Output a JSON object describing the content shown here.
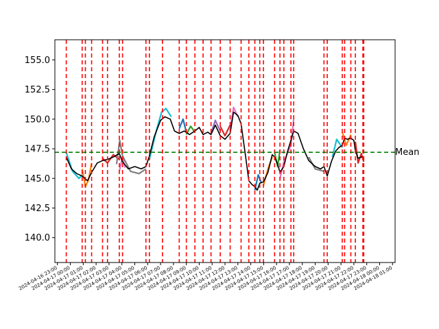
{
  "chart_data": {
    "type": "line",
    "title": "",
    "xlabel": "",
    "ylabel": "",
    "ylim": [
      137.9,
      156.7
    ],
    "xlim": [
      "2024-04-16 22:48",
      "2024-04-18 01:12"
    ],
    "grid": false,
    "yticks": [
      140.0,
      142.5,
      145.0,
      147.5,
      150.0,
      152.5,
      155.0
    ],
    "ytick_labels": [
      "140.0",
      "142.5",
      "145.0",
      "147.5",
      "150.0",
      "152.5",
      "155.0"
    ],
    "xticks": [
      "2024-04-16 23:00",
      "2024-04-17 00:00",
      "2024-04-17 01:00",
      "2024-04-17 02:00",
      "2024-04-17 03:00",
      "2024-04-17 04:00",
      "2024-04-17 05:00",
      "2024-04-17 06:00",
      "2024-04-17 07:00",
      "2024-04-17 08:00",
      "2024-04-17 09:00",
      "2024-04-17 10:00",
      "2024-04-17 11:00",
      "2024-04-17 12:00",
      "2024-04-17 13:00",
      "2024-04-17 14:00",
      "2024-04-17 15:00",
      "2024-04-17 16:00",
      "2024-04-17 17:00",
      "2024-04-17 18:00",
      "2024-04-17 19:00",
      "2024-04-17 20:00",
      "2024-04-17 21:00",
      "2024-04-17 22:00",
      "2024-04-17 23:00",
      "2024-04-18 00:00",
      "2024-04-18 01:00"
    ],
    "xtick_labels": [
      "2024-04-16 23:00",
      "2024-04-17 00:00",
      "2024-04-17 01:00",
      "2024-04-17 02:00",
      "2024-04-17 03:00",
      "2024-04-17 04:00",
      "2024-04-17 05:00",
      "2024-04-17 06:00",
      "2024-04-17 07:00",
      "2024-04-17 08:00",
      "2024-04-17 09:00",
      "2024-04-17 10:00",
      "2024-04-17 11:00",
      "2024-04-17 12:00",
      "2024-04-17 13:00",
      "2024-04-17 14:00",
      "2024-04-17 15:00",
      "2024-04-17 16:00",
      "2024-04-17 17:00",
      "2024-04-17 18:00",
      "2024-04-17 19:00",
      "2024-04-17 20:00",
      "2024-04-17 21:00",
      "2024-04-17 22:00",
      "2024-04-17 23:00",
      "2024-04-18 00:00",
      "2024-04-18 01:00"
    ],
    "mean": {
      "value": 147.2,
      "label": "Mean",
      "color": "#008000"
    },
    "vline_color": "#ff0000",
    "vlines": [
      "2024-04-16 23:41",
      "2024-04-17 00:55",
      "2024-04-17 01:10",
      "2024-04-17 01:39",
      "2024-04-17 02:30",
      "2024-04-17 02:53",
      "2024-04-17 03:48",
      "2024-04-17 04:03",
      "2024-04-17 05:52",
      "2024-04-17 06:08",
      "2024-04-17 07:09",
      "2024-04-17 08:27",
      "2024-04-17 09:00",
      "2024-04-17 09:40",
      "2024-04-17 10:18",
      "2024-04-17 10:55",
      "2024-04-17 11:38",
      "2024-04-17 12:24",
      "2024-04-17 13:15",
      "2024-04-17 13:51",
      "2024-04-17 14:19",
      "2024-04-17 14:42",
      "2024-04-17 14:59",
      "2024-04-17 15:51",
      "2024-04-17 16:16",
      "2024-04-17 16:34",
      "2024-04-17 17:07",
      "2024-04-17 17:20",
      "2024-04-17 19:41",
      "2024-04-17 19:56",
      "2024-04-17 21:06",
      "2024-04-17 21:17",
      "2024-04-17 21:46",
      "2024-04-17 22:07",
      "2024-04-17 22:42",
      "2024-04-17 22:46"
    ],
    "series": [
      {
        "color": "#000000",
        "points": [
          [
            "2024-04-16 23:41",
            146.8
          ],
          [
            "2024-04-17 00:05",
            145.8
          ],
          [
            "2024-04-17 00:30",
            145.4
          ],
          [
            "2024-04-17 00:55",
            145.2
          ],
          [
            "2024-04-17 01:20",
            144.8
          ],
          [
            "2024-04-17 01:39",
            145.5
          ],
          [
            "2024-04-17 02:05",
            146.3
          ],
          [
            "2024-04-17 02:30",
            146.5
          ],
          [
            "2024-04-17 02:53",
            146.6
          ],
          [
            "2024-04-17 03:20",
            146.8
          ],
          [
            "2024-04-17 03:48",
            147.1
          ],
          [
            "2024-04-17 04:03",
            146.4
          ],
          [
            "2024-04-17 04:30",
            145.8
          ],
          [
            "2024-04-17 05:00",
            146.0
          ],
          [
            "2024-04-17 05:30",
            145.8
          ],
          [
            "2024-04-17 05:52",
            146.0
          ],
          [
            "2024-04-17 06:08",
            146.9
          ],
          [
            "2024-04-17 06:30",
            148.5
          ],
          [
            "2024-04-17 07:00",
            149.9
          ],
          [
            "2024-04-17 07:20",
            150.2
          ],
          [
            "2024-04-17 07:45",
            150.0
          ],
          [
            "2024-04-17 08:05",
            149.0
          ],
          [
            "2024-04-17 08:27",
            148.8
          ],
          [
            "2024-04-17 08:50",
            149.0
          ],
          [
            "2024-04-17 09:15",
            148.7
          ],
          [
            "2024-04-17 09:40",
            149.0
          ],
          [
            "2024-04-17 10:00",
            149.3
          ],
          [
            "2024-04-17 10:18",
            148.7
          ],
          [
            "2024-04-17 10:40",
            148.9
          ],
          [
            "2024-04-17 10:55",
            148.7
          ],
          [
            "2024-04-17 11:15",
            149.5
          ],
          [
            "2024-04-17 11:38",
            148.6
          ],
          [
            "2024-04-17 12:00",
            148.3
          ],
          [
            "2024-04-17 12:24",
            148.8
          ],
          [
            "2024-04-17 12:40",
            150.6
          ],
          [
            "2024-04-17 13:00",
            150.3
          ],
          [
            "2024-04-17 13:15",
            149.6
          ],
          [
            "2024-04-17 13:35",
            147.0
          ],
          [
            "2024-04-17 13:51",
            144.8
          ],
          [
            "2024-04-17 14:05",
            144.5
          ],
          [
            "2024-04-17 14:19",
            144.3
          ],
          [
            "2024-04-17 14:30",
            144.0
          ],
          [
            "2024-04-17 14:42",
            144.6
          ],
          [
            "2024-04-17 14:59",
            144.7
          ],
          [
            "2024-04-17 15:20",
            145.5
          ],
          [
            "2024-04-17 15:40",
            147.0
          ],
          [
            "2024-04-17 15:51",
            146.8
          ],
          [
            "2024-04-17 16:05",
            146.2
          ],
          [
            "2024-04-17 16:16",
            145.5
          ],
          [
            "2024-04-17 16:34",
            146.0
          ],
          [
            "2024-04-17 16:50",
            147.2
          ],
          [
            "2024-04-17 17:07",
            148.2
          ],
          [
            "2024-04-17 17:20",
            149.0
          ],
          [
            "2024-04-17 17:40",
            148.8
          ],
          [
            "2024-04-17 18:05",
            147.5
          ],
          [
            "2024-04-17 18:30",
            146.5
          ],
          [
            "2024-04-17 19:00",
            146.0
          ],
          [
            "2024-04-17 19:25",
            145.8
          ],
          [
            "2024-04-17 19:41",
            146.0
          ],
          [
            "2024-04-17 19:56",
            145.2
          ],
          [
            "2024-04-17 20:15",
            146.4
          ],
          [
            "2024-04-17 20:35",
            147.3
          ],
          [
            "2024-04-17 20:50",
            147.6
          ],
          [
            "2024-04-17 21:06",
            147.8
          ],
          [
            "2024-04-17 21:17",
            148.4
          ],
          [
            "2024-04-17 21:30",
            148.3
          ],
          [
            "2024-04-17 21:46",
            148.4
          ],
          [
            "2024-04-17 22:00",
            148.2
          ],
          [
            "2024-04-17 22:07",
            147.3
          ],
          [
            "2024-04-17 22:20",
            146.7
          ],
          [
            "2024-04-17 22:35",
            146.8
          ],
          [
            "2024-04-17 22:46",
            146.8
          ]
        ]
      },
      {
        "color": "#17becf",
        "points": [
          [
            "2024-04-16 23:41",
            147.2
          ],
          [
            "2024-04-17 00:10",
            145.6
          ],
          [
            "2024-04-17 00:40",
            145.0
          ],
          [
            "2024-04-17 00:55",
            145.3
          ]
        ]
      },
      {
        "color": "#ff7f0e",
        "points": [
          [
            "2024-04-17 00:55",
            145.8
          ],
          [
            "2024-04-17 01:10",
            144.3
          ],
          [
            "2024-04-17 01:25",
            144.9
          ],
          [
            "2024-04-17 01:39",
            146.3
          ]
        ]
      },
      {
        "color": "#d62728",
        "points": [
          [
            "2024-04-17 02:30",
            146.7
          ],
          [
            "2024-04-17 02:53",
            146.3
          ],
          [
            "2024-04-17 03:20",
            147.0
          ],
          [
            "2024-04-17 03:48",
            146.6
          ]
        ]
      },
      {
        "color": "#e377c2",
        "points": [
          [
            "2024-04-17 03:48",
            145.6
          ],
          [
            "2024-04-17 04:03",
            146.8
          ],
          [
            "2024-04-17 04:15",
            145.9
          ]
        ]
      },
      {
        "color": "#7f7f7f",
        "points": [
          [
            "2024-04-17 03:35",
            146.2
          ],
          [
            "2024-04-17 03:50",
            148.2
          ],
          [
            "2024-04-17 04:03",
            146.9
          ],
          [
            "2024-04-17 04:40",
            145.6
          ],
          [
            "2024-04-17 05:20",
            145.4
          ],
          [
            "2024-04-17 05:52",
            145.8
          ]
        ]
      },
      {
        "color": "#17becf",
        "points": [
          [
            "2024-04-17 06:08",
            146.6
          ],
          [
            "2024-04-17 06:40",
            149.0
          ],
          [
            "2024-04-17 07:05",
            150.6
          ],
          [
            "2024-04-17 07:25",
            150.9
          ],
          [
            "2024-04-17 07:50",
            150.2
          ]
        ]
      },
      {
        "color": "#1f77b4",
        "points": [
          [
            "2024-04-17 08:27",
            149.2
          ],
          [
            "2024-04-17 08:45",
            150.0
          ],
          [
            "2024-04-17 09:00",
            148.9
          ]
        ]
      },
      {
        "color": "#2ca02c",
        "points": [
          [
            "2024-04-17 09:00",
            148.7
          ],
          [
            "2024-04-17 09:20",
            149.4
          ],
          [
            "2024-04-17 09:40",
            148.9
          ]
        ]
      },
      {
        "color": "#9467bd",
        "points": [
          [
            "2024-04-17 10:55",
            148.8
          ],
          [
            "2024-04-17 11:15",
            149.9
          ],
          [
            "2024-04-17 11:38",
            149.0
          ]
        ]
      },
      {
        "color": "#e377c2",
        "points": [
          [
            "2024-04-17 12:24",
            149.2
          ],
          [
            "2024-04-17 12:40",
            151.0
          ],
          [
            "2024-04-17 13:00",
            150.2
          ]
        ]
      },
      {
        "color": "#d62728",
        "points": [
          [
            "2024-04-17 11:38",
            149.4
          ],
          [
            "2024-04-17 12:00",
            148.6
          ],
          [
            "2024-04-17 12:24",
            149.5
          ]
        ]
      },
      {
        "color": "#1f77b4",
        "points": [
          [
            "2024-04-17 14:19",
            144.0
          ],
          [
            "2024-04-17 14:35",
            145.3
          ],
          [
            "2024-04-17 14:50",
            144.6
          ]
        ]
      },
      {
        "color": "#ff7f0e",
        "points": [
          [
            "2024-04-17 14:59",
            144.4
          ],
          [
            "2024-04-17 15:20",
            145.8
          ],
          [
            "2024-04-17 15:40",
            146.8
          ]
        ]
      },
      {
        "color": "#2ca02c",
        "points": [
          [
            "2024-04-17 15:51",
            147.2
          ],
          [
            "2024-04-17 16:05",
            146.0
          ],
          [
            "2024-04-17 16:16",
            147.4
          ]
        ]
      },
      {
        "color": "#e377c2",
        "points": [
          [
            "2024-04-17 16:16",
            145.0
          ],
          [
            "2024-04-17 16:34",
            146.4
          ],
          [
            "2024-04-17 17:07",
            147.8
          ],
          [
            "2024-04-17 17:20",
            150.0
          ]
        ]
      },
      {
        "color": "#7f7f7f",
        "points": [
          [
            "2024-04-17 18:30",
            146.8
          ],
          [
            "2024-04-17 19:00",
            145.8
          ],
          [
            "2024-04-17 19:41",
            145.6
          ]
        ]
      },
      {
        "color": "#17becf",
        "points": [
          [
            "2024-04-17 20:20",
            146.8
          ],
          [
            "2024-04-17 20:40",
            148.3
          ],
          [
            "2024-04-17 21:06",
            147.6
          ]
        ]
      },
      {
        "color": "#ff7f0e",
        "points": [
          [
            "2024-04-17 21:06",
            148.9
          ],
          [
            "2024-04-17 21:25",
            147.8
          ],
          [
            "2024-04-17 21:46",
            148.7
          ]
        ]
      },
      {
        "color": "#d62728",
        "points": [
          [
            "2024-04-17 22:07",
            148.1
          ],
          [
            "2024-04-17 22:20",
            146.3
          ],
          [
            "2024-04-17 22:35",
            147.1
          ],
          [
            "2024-04-17 22:46",
            146.4
          ]
        ]
      }
    ]
  }
}
